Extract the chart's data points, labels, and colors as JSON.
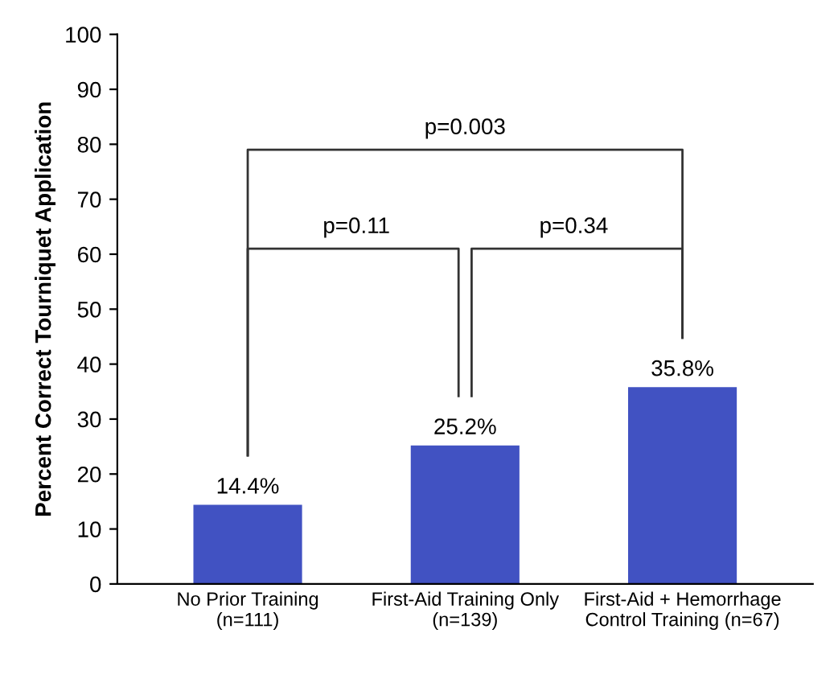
{
  "chart_data": {
    "type": "bar",
    "ylabel": "Percent Correct Tourniquet Application",
    "categories": [
      "No Prior Training\n(n=111)",
      "First-Aid Training Only\n(n=139)",
      "First-Aid + Hemorrhage\nControl Training (n=67)"
    ],
    "values": [
      14.4,
      25.2,
      35.8
    ],
    "value_labels": [
      "14.4%",
      "25.2%",
      "35.8%"
    ],
    "color": "#4152c2",
    "ylim": [
      0,
      100
    ],
    "yticks": [
      0,
      10,
      20,
      30,
      40,
      50,
      60,
      70,
      80,
      90,
      100
    ],
    "grid": false,
    "annotations": [
      "p=0.11",
      "p=0.34",
      "p=0.003"
    ]
  }
}
